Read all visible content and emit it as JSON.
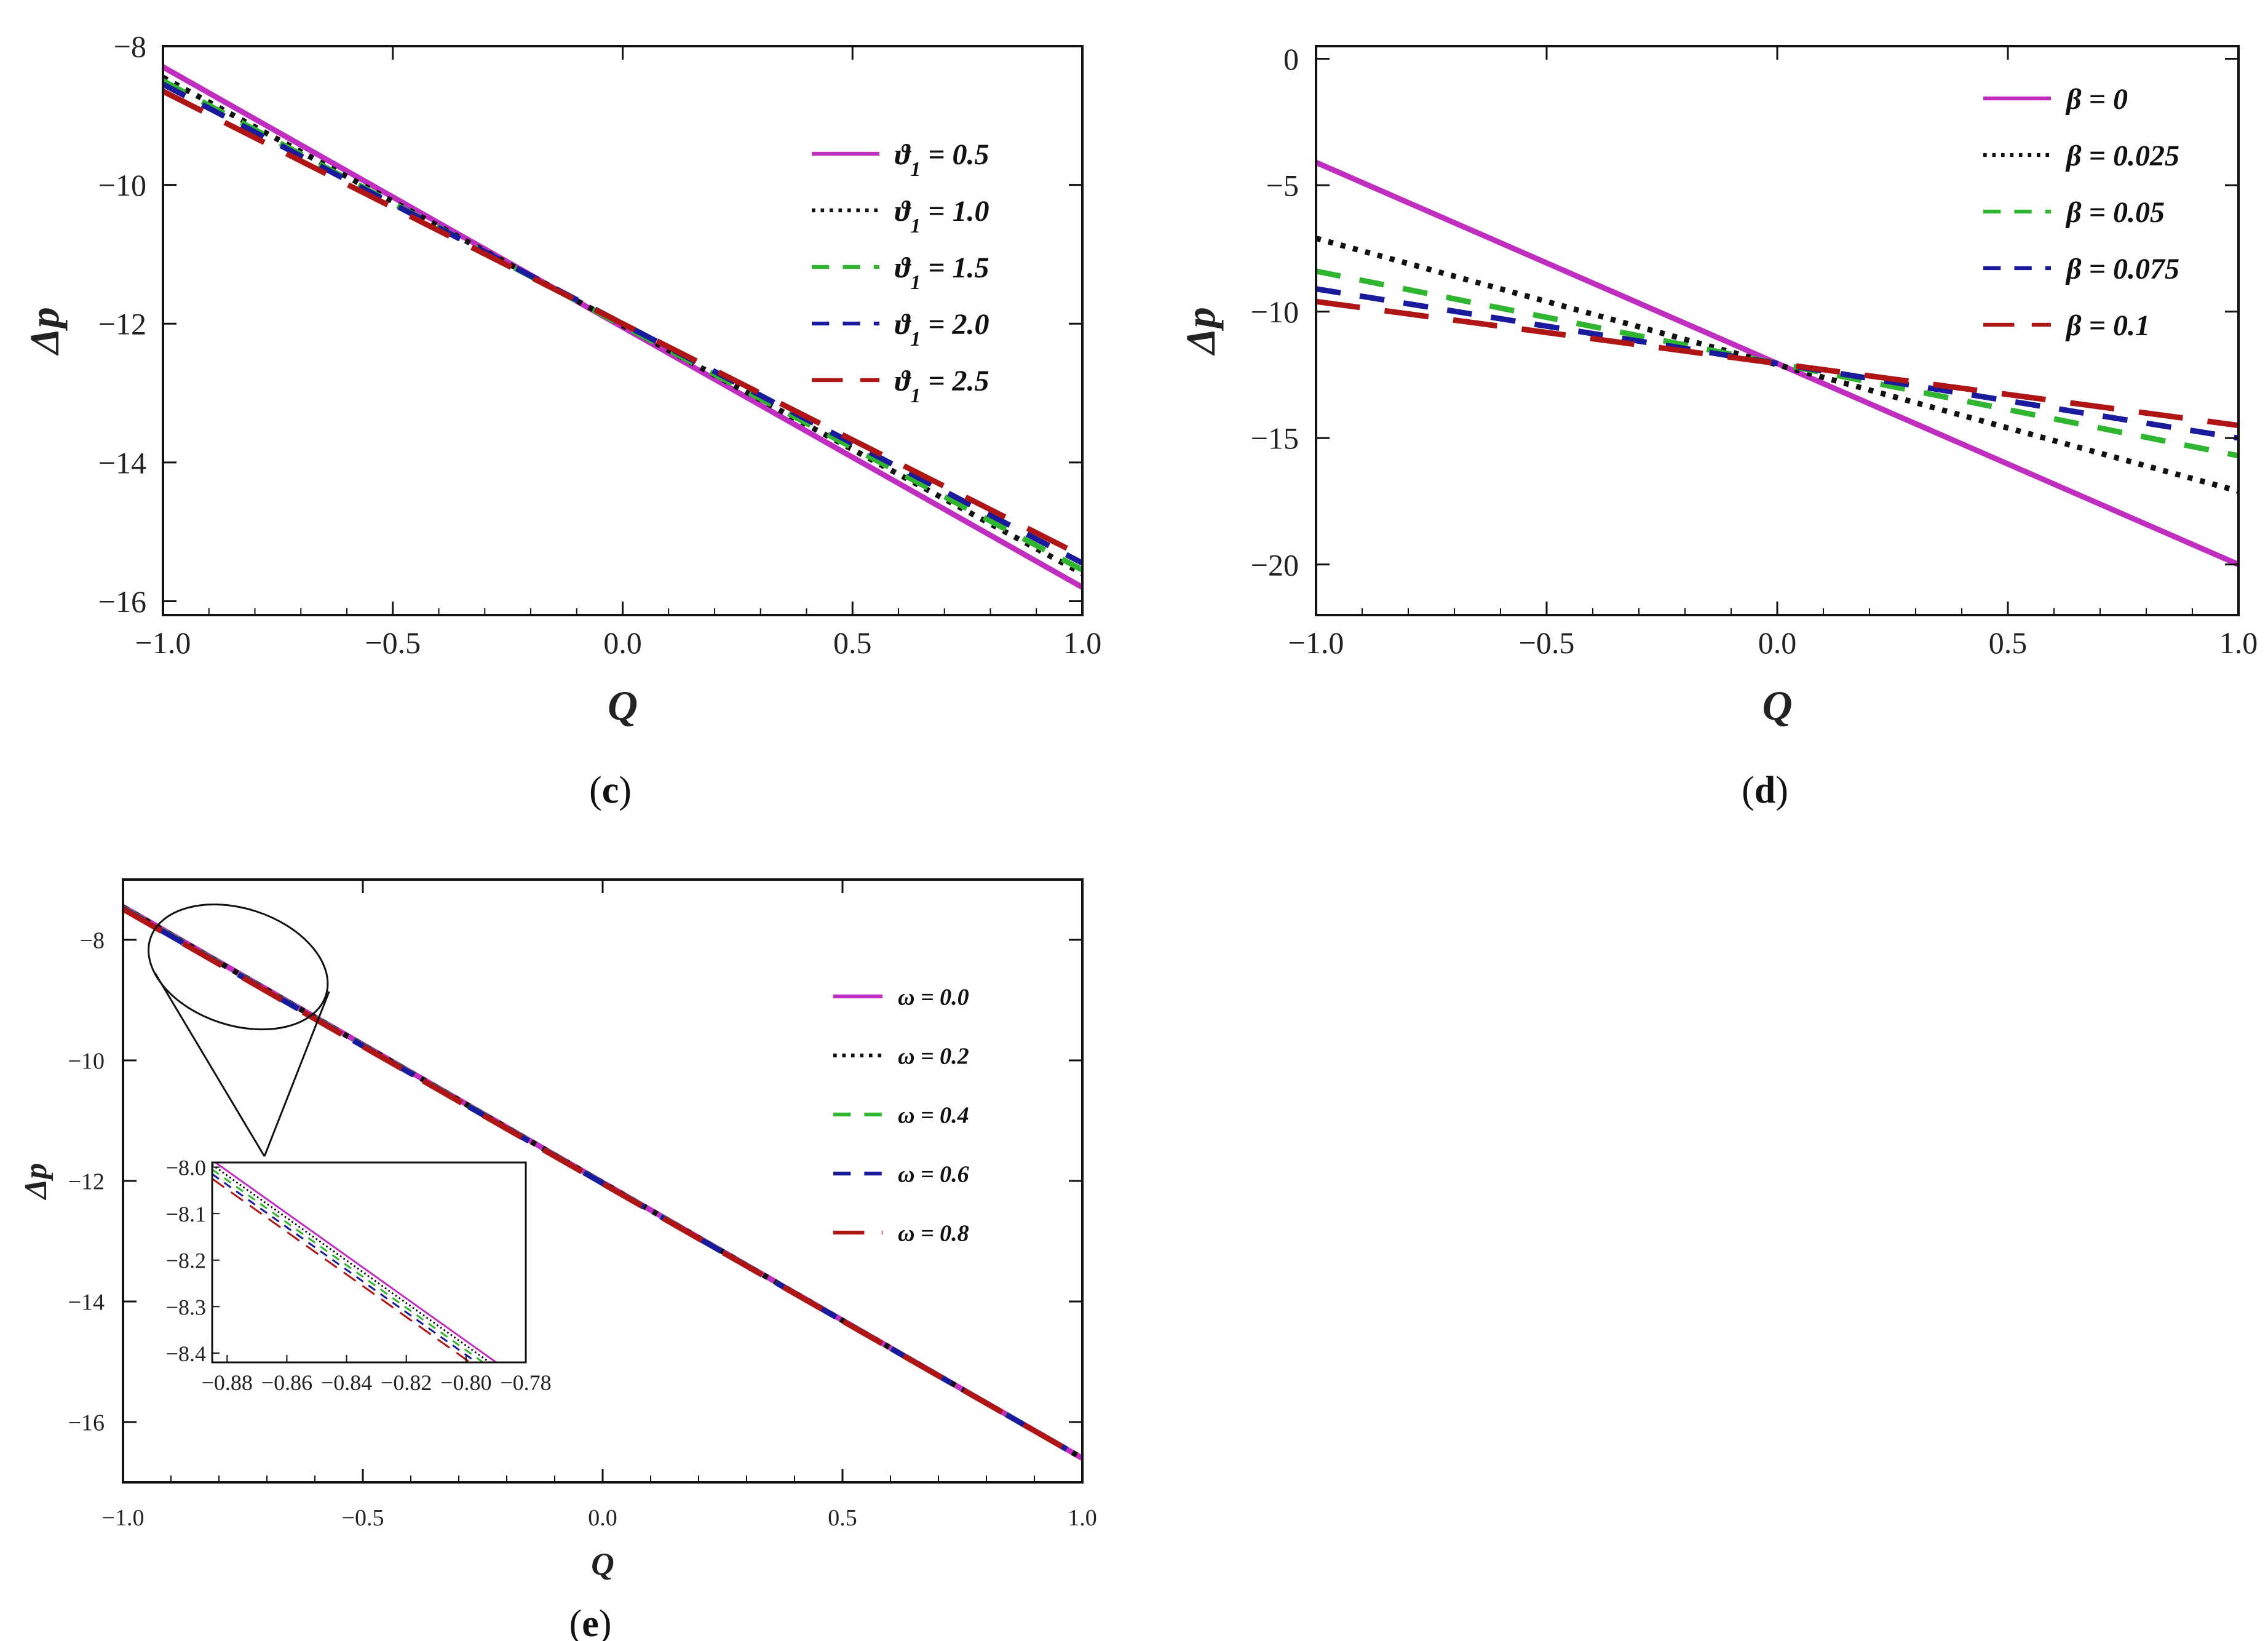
{
  "chart_data": [
    {
      "panel": "(c)",
      "panel_letter": "c",
      "type": "line",
      "xlabel": "Q",
      "ylabel": "Δp",
      "xlim": [
        -1.0,
        1.0
      ],
      "ylim": [
        -16.2,
        -8.0
      ],
      "xticks": [
        -1.0,
        -0.5,
        0.0,
        0.5,
        1.0
      ],
      "xtick_labels": [
        "−1.0",
        "−0.5",
        "0.0",
        "0.5",
        "1.0"
      ],
      "yticks": [
        -8,
        -10,
        -12,
        -14,
        -16
      ],
      "ytick_labels": [
        "−8",
        "−10",
        "−12",
        "−14",
        "−16"
      ],
      "legend_position": "top-right",
      "series": [
        {
          "name": "ϑ1 = 0.5",
          "legend_parts": [
            "ϑ",
            "1",
            " = 0.5"
          ],
          "color": "#c02ec0",
          "dash": "solid",
          "x": [
            -1.0,
            1.0
          ],
          "y": [
            -8.3,
            -15.8
          ]
        },
        {
          "name": "ϑ1 = 1.0",
          "legend_parts": [
            "ϑ",
            "1",
            " = 1.0"
          ],
          "color": "#111111",
          "dash": "dotted",
          "x": [
            -1.0,
            1.0
          ],
          "y": [
            -8.45,
            -15.6
          ]
        },
        {
          "name": "ϑ1 = 1.5",
          "legend_parts": [
            "ϑ",
            "1",
            " = 1.5"
          ],
          "color": "#2fb52f",
          "dash": "dashed",
          "x": [
            -1.0,
            1.0
          ],
          "y": [
            -8.5,
            -15.55
          ]
        },
        {
          "name": "ϑ1 = 2.0",
          "legend_parts": [
            "ϑ",
            "1",
            " = 2.0"
          ],
          "color": "#1a1a9c",
          "dash": "dashed",
          "x": [
            -1.0,
            1.0
          ],
          "y": [
            -8.55,
            -15.45
          ]
        },
        {
          "name": "ϑ1 = 2.5",
          "legend_parts": [
            "ϑ",
            "1",
            " = 2.5"
          ],
          "color": "#b01515",
          "dash": "longdash",
          "x": [
            -1.0,
            1.0
          ],
          "y": [
            -8.65,
            -15.35
          ]
        }
      ]
    },
    {
      "panel": "(d)",
      "panel_letter": "d",
      "type": "line",
      "xlabel": "Q",
      "ylabel": "Δp",
      "xlim": [
        -1.0,
        1.0
      ],
      "ylim": [
        -22,
        0.5
      ],
      "xticks": [
        -1.0,
        -0.5,
        0.0,
        0.5,
        1.0
      ],
      "xtick_labels": [
        "−1.0",
        "−0.5",
        "0.0",
        "0.5",
        "1.0"
      ],
      "yticks": [
        0,
        -5,
        -10,
        -15,
        -20
      ],
      "ytick_labels": [
        "0",
        "−5",
        "−10",
        "−15",
        "−20"
      ],
      "legend_position": "top-right",
      "series": [
        {
          "name": "β = 0",
          "legend_parts": [
            "β",
            "",
            " = 0"
          ],
          "color": "#c02ec0",
          "dash": "solid",
          "x": [
            -1.0,
            1.0
          ],
          "y": [
            -4.1,
            -20.0
          ]
        },
        {
          "name": "β = 0.025",
          "legend_parts": [
            "β",
            "",
            " = 0.025"
          ],
          "color": "#111111",
          "dash": "dotted",
          "x": [
            -1.0,
            1.0
          ],
          "y": [
            -7.1,
            -17.1
          ]
        },
        {
          "name": "β = 0.05",
          "legend_parts": [
            "β",
            "",
            " = 0.05"
          ],
          "color": "#2fb52f",
          "dash": "dashed",
          "x": [
            -1.0,
            1.0
          ],
          "y": [
            -8.4,
            -15.7
          ]
        },
        {
          "name": "β = 0.075",
          "legend_parts": [
            "β",
            "",
            " = 0.075"
          ],
          "color": "#1a1a9c",
          "dash": "dashed",
          "x": [
            -1.0,
            1.0
          ],
          "y": [
            -9.1,
            -15.0
          ]
        },
        {
          "name": "β = 0.1",
          "legend_parts": [
            "β",
            "",
            " = 0.1"
          ],
          "color": "#b01515",
          "dash": "longdash",
          "x": [
            -1.0,
            1.0
          ],
          "y": [
            -9.6,
            -14.5
          ]
        }
      ]
    },
    {
      "panel": "(e)",
      "panel_letter": "e",
      "type": "line",
      "xlabel": "Q",
      "ylabel": "Δp",
      "xlim": [
        -1.0,
        1.0
      ],
      "ylim": [
        -17.0,
        -7.0
      ],
      "xticks": [
        -1.0,
        -0.5,
        0.0,
        0.5,
        1.0
      ],
      "xtick_labels": [
        "−1.0",
        "−0.5",
        "0.0",
        "0.5",
        "1.0"
      ],
      "yticks": [
        -8,
        -10,
        -12,
        -14,
        -16
      ],
      "ytick_labels": [
        "−8",
        "−10",
        "−12",
        "−14",
        "−16"
      ],
      "legend_position": "right",
      "series": [
        {
          "name": "ω = 0.0",
          "legend_parts": [
            "ω",
            "",
            " = 0.0"
          ],
          "color": "#c02ec0",
          "dash": "solid",
          "x": [
            -1.0,
            1.0
          ],
          "y": [
            -7.45,
            -16.6
          ]
        },
        {
          "name": "ω = 0.2",
          "legend_parts": [
            "ω",
            "",
            " = 0.2"
          ],
          "color": "#111111",
          "dash": "dotted",
          "x": [
            -1.0,
            1.0
          ],
          "y": [
            -7.46,
            -16.6
          ]
        },
        {
          "name": "ω = 0.4",
          "legend_parts": [
            "ω",
            "",
            " = 0.4"
          ],
          "color": "#2fb52f",
          "dash": "dashed",
          "x": [
            -1.0,
            1.0
          ],
          "y": [
            -7.47,
            -16.6
          ]
        },
        {
          "name": "ω = 0.6",
          "legend_parts": [
            "ω",
            "",
            " = 0.6"
          ],
          "color": "#1a1a9c",
          "dash": "dashed",
          "x": [
            -1.0,
            1.0
          ],
          "y": [
            -7.48,
            -16.6
          ]
        },
        {
          "name": "ω = 0.8",
          "legend_parts": [
            "ω",
            "",
            " = 0.8"
          ],
          "color": "#b01515",
          "dash": "longdash",
          "x": [
            -1.0,
            1.0
          ],
          "y": [
            -7.49,
            -16.6
          ]
        }
      ],
      "inset": {
        "xlim": [
          -0.885,
          -0.78
        ],
        "ylim": [
          -8.42,
          -7.99
        ],
        "xticks": [
          -0.88,
          -0.86,
          -0.84,
          -0.82,
          -0.8,
          -0.78
        ],
        "xtick_labels": [
          "−0.88",
          "−0.86",
          "−0.84",
          "−0.82",
          "−0.80",
          "−0.78"
        ],
        "yticks": [
          -8.0,
          -8.1,
          -8.2,
          -8.3,
          -8.4
        ],
        "ytick_labels": [
          "−8.0",
          "−8.1",
          "−8.2",
          "−8.3",
          "−8.4"
        ],
        "series_y_at_xmin": [
          -7.985,
          -7.995,
          -8.005,
          -8.015,
          -8.025
        ],
        "slope": -4.575,
        "zoom_center": {
          "x": -0.76,
          "y": -8.45
        }
      }
    }
  ]
}
